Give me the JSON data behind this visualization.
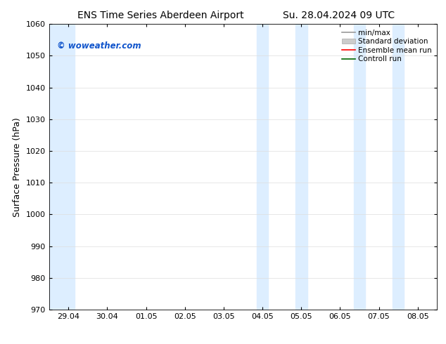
{
  "title_left": "ENS Time Series Aberdeen Airport",
  "title_right": "Su. 28.04.2024 09 UTC",
  "ylabel": "Surface Pressure (hPa)",
  "ylim": [
    970,
    1060
  ],
  "yticks": [
    970,
    980,
    990,
    1000,
    1010,
    1020,
    1030,
    1040,
    1050,
    1060
  ],
  "xtick_labels": [
    "29.04",
    "30.04",
    "01.05",
    "02.05",
    "03.05",
    "04.05",
    "05.05",
    "06.05",
    "07.05",
    "08.05"
  ],
  "shaded_bands_days": [
    {
      "day_start": 0.0,
      "day_end": 0.4
    },
    {
      "day_start": 5.0,
      "day_end": 5.4
    },
    {
      "day_start": 6.0,
      "day_end": 6.4
    },
    {
      "day_start": 7.5,
      "day_end": 7.9
    },
    {
      "day_start": 8.5,
      "day_end": 9.0
    }
  ],
  "shaded_color": "#ddeeff",
  "watermark": "© woweather.com",
  "watermark_color": "#1155cc",
  "background_color": "#ffffff",
  "grid_color": "#dddddd",
  "legend_items": [
    {
      "label": "min/max",
      "color": "#999999",
      "lw": 1.2
    },
    {
      "label": "Standard deviation",
      "color": "#cccccc",
      "lw": 5
    },
    {
      "label": "Ensemble mean run",
      "color": "#ff0000",
      "lw": 1.2
    },
    {
      "label": "Controll run",
      "color": "#006600",
      "lw": 1.2
    }
  ],
  "title_fontsize": 10,
  "tick_fontsize": 8,
  "ylabel_fontsize": 9,
  "legend_fontsize": 7.5
}
